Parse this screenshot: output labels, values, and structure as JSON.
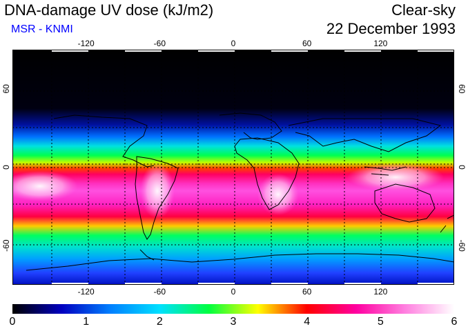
{
  "title": "DNA-damage UV dose (kJ/m2)",
  "source": "MSR - KNMI",
  "sky_condition": "Clear-sky",
  "date": "22 December 1993",
  "map": {
    "lon_ticks": [
      -120,
      -60,
      0,
      60,
      120
    ],
    "lat_ticks": [
      60,
      0,
      -60
    ],
    "lon_range": [
      -180,
      180
    ],
    "lat_range": [
      -90,
      90
    ]
  },
  "colorbar": {
    "min": 0,
    "max": 6,
    "labels": [
      "0",
      "1",
      "2",
      "3",
      "4",
      "5",
      "6"
    ],
    "colors": [
      "#000000",
      "#0000c0",
      "#0080ff",
      "#00e0ff",
      "#00ff40",
      "#ffff00",
      "#ff0000",
      "#ff00a0",
      "#ff80e0",
      "#ffffff"
    ]
  }
}
